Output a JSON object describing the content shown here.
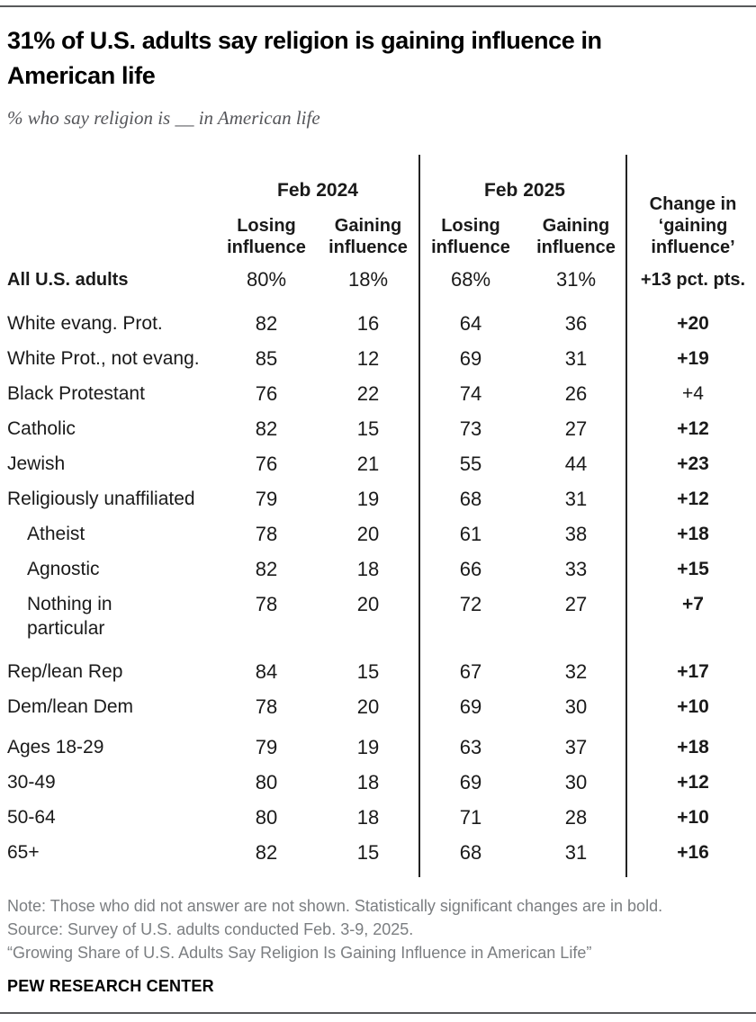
{
  "title": "31% of U.S. adults say religion is gaining influence in\nAmerican life",
  "subtitle": "% who say religion is __ in American life",
  "colors": {
    "text": "#1a1a1a",
    "muted_gray": "#7b7e81",
    "subtitle_gray": "#55565a",
    "rule_gray": "#58595b"
  },
  "chart_data": {
    "type": "table",
    "column_groups": [
      "Feb 2024",
      "Feb 2025"
    ],
    "header": {
      "group_2024": "Feb 2024",
      "group_2025": "Feb 2025",
      "losing": "Losing\ninfluence",
      "gaining": "Gaining\ninfluence",
      "change": "Change in\n‘gaining\ninfluence’"
    },
    "all_adults": {
      "label": "All U.S. adults",
      "losing_2024": "80%",
      "gaining_2024": "18%",
      "losing_2025": "68%",
      "gaining_2025": "31%",
      "change": "+13 pct. pts."
    },
    "rows": [
      {
        "label": "White evang. Prot.",
        "losing_2024": 82,
        "gaining_2024": 16,
        "losing_2025": 64,
        "gaining_2025": 36,
        "change": "+20",
        "significant": true,
        "section_start": "religion"
      },
      {
        "label": "White Prot., not evang.",
        "losing_2024": 85,
        "gaining_2024": 12,
        "losing_2025": 69,
        "gaining_2025": 31,
        "change": "+19",
        "significant": true
      },
      {
        "label": "Black Protestant",
        "losing_2024": 76,
        "gaining_2024": 22,
        "losing_2025": 74,
        "gaining_2025": 26,
        "change": "+4",
        "significant": false
      },
      {
        "label": "Catholic",
        "losing_2024": 82,
        "gaining_2024": 15,
        "losing_2025": 73,
        "gaining_2025": 27,
        "change": "+12",
        "significant": true
      },
      {
        "label": "Jewish",
        "losing_2024": 76,
        "gaining_2024": 21,
        "losing_2025": 55,
        "gaining_2025": 44,
        "change": "+23",
        "significant": true
      },
      {
        "label": "Religiously unaffiliated",
        "losing_2024": 79,
        "gaining_2024": 19,
        "losing_2025": 68,
        "gaining_2025": 31,
        "change": "+12",
        "significant": true
      },
      {
        "label": "Atheist",
        "losing_2024": 78,
        "gaining_2024": 20,
        "losing_2025": 61,
        "gaining_2025": 38,
        "change": "+18",
        "significant": true,
        "indent": true
      },
      {
        "label": "Agnostic",
        "losing_2024": 82,
        "gaining_2024": 18,
        "losing_2025": 66,
        "gaining_2025": 33,
        "change": "+15",
        "significant": true,
        "indent": true
      },
      {
        "label": "Nothing in\nparticular",
        "losing_2024": 78,
        "gaining_2024": 20,
        "losing_2025": 72,
        "gaining_2025": 27,
        "change": "+7",
        "significant": true,
        "indent": true,
        "two_line": true
      },
      {
        "label": "Rep/lean Rep",
        "losing_2024": 84,
        "gaining_2024": 15,
        "losing_2025": 67,
        "gaining_2025": 32,
        "change": "+17",
        "significant": true,
        "section_start": "party"
      },
      {
        "label": "Dem/lean Dem",
        "losing_2024": 78,
        "gaining_2024": 20,
        "losing_2025": 69,
        "gaining_2025": 30,
        "change": "+10",
        "significant": true
      },
      {
        "label": "Ages 18-29",
        "losing_2024": 79,
        "gaining_2024": 19,
        "losing_2025": 63,
        "gaining_2025": 37,
        "change": "+18",
        "significant": true,
        "section_start": "age"
      },
      {
        "label": "30-49",
        "losing_2024": 80,
        "gaining_2024": 18,
        "losing_2025": 69,
        "gaining_2025": 30,
        "change": "+12",
        "significant": true
      },
      {
        "label": "50-64",
        "losing_2024": 80,
        "gaining_2024": 18,
        "losing_2025": 71,
        "gaining_2025": 28,
        "change": "+10",
        "significant": true
      },
      {
        "label": "65+",
        "losing_2024": 82,
        "gaining_2024": 15,
        "losing_2025": 68,
        "gaining_2025": 31,
        "change": "+16",
        "significant": true
      }
    ]
  },
  "footer": {
    "note": "Note: Those who did not answer are not shown. Statistically significant changes are in bold.",
    "source": "Source: Survey of U.S. adults conducted Feb. 3-9, 2025.",
    "quote": "“Growing Share of U.S. Adults Say Religion Is Gaining Influence in American Life”",
    "brand": "PEW RESEARCH CENTER"
  }
}
